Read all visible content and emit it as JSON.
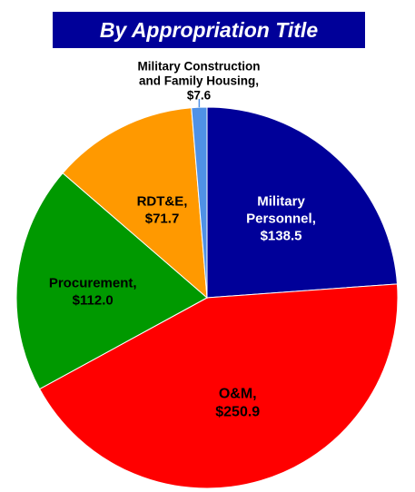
{
  "title": "By Appropriation Title",
  "chart_data": {
    "type": "pie",
    "title": "By Appropriation Title",
    "slices": [
      {
        "name": "Military Personnel",
        "value": 138.5,
        "label_lines": [
          "Military",
          "Personnel,",
          "$138.5"
        ],
        "color": "#000099",
        "text_color": "#ffffff"
      },
      {
        "name": "O&M",
        "value": 250.9,
        "label_lines": [
          "O&M,",
          "$250.9"
        ],
        "color": "#ff0000",
        "text_color": "#000000"
      },
      {
        "name": "Procurement",
        "value": 112.0,
        "label_lines": [
          "Procurement,",
          "$112.0"
        ],
        "color": "#009900",
        "text_color": "#000000"
      },
      {
        "name": "RDT&E",
        "value": 71.7,
        "label_lines": [
          "RDT&E,",
          "$71.7"
        ],
        "color": "#ff9900",
        "text_color": "#000000"
      },
      {
        "name": "Military Construction and Family Housing",
        "value": 7.6,
        "label_lines": [
          "Military Construction",
          "and Family Housing,",
          "$7.6"
        ],
        "color": "#4f91e6",
        "text_color": "#000000"
      }
    ]
  }
}
